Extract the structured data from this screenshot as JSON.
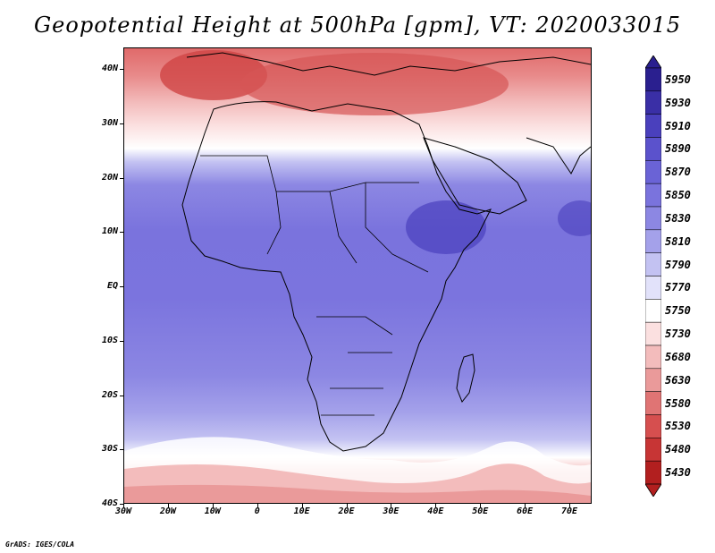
{
  "title": "Geopotential Height at 500hPa [gpm], VT: 2020033015",
  "map": {
    "lat_labels": [
      "40N",
      "30N",
      "20N",
      "10N",
      "EQ",
      "10S",
      "20S",
      "30S",
      "40S"
    ],
    "lon_labels": [
      "30W",
      "20W",
      "10W",
      "0",
      "10E",
      "20E",
      "30E",
      "40E",
      "50E",
      "60E",
      "70E"
    ],
    "region": "Africa",
    "lon_range": [
      -30,
      75
    ],
    "lat_range": [
      -40,
      44
    ]
  },
  "colorbar": {
    "levels": [
      "5950",
      "5930",
      "5910",
      "5890",
      "5870",
      "5850",
      "5830",
      "5810",
      "5790",
      "5770",
      "5750",
      "5730",
      "5680",
      "5630",
      "5580",
      "5530",
      "5480",
      "5430"
    ],
    "colors": [
      "#2a1f8f",
      "#3a2fa6",
      "#4a40bd",
      "#5b52cc",
      "#6a63d6",
      "#7a73dd",
      "#8c87e3",
      "#a4a1ea",
      "#c3c2f2",
      "#e2e2fa",
      "#ffffff",
      "#fbe0e0",
      "#f3bcbc",
      "#ea9a9a",
      "#e07474",
      "#d64f4f",
      "#c73535",
      "#b21f1f"
    ]
  },
  "credit": "GrADS: IGES/COLA"
}
